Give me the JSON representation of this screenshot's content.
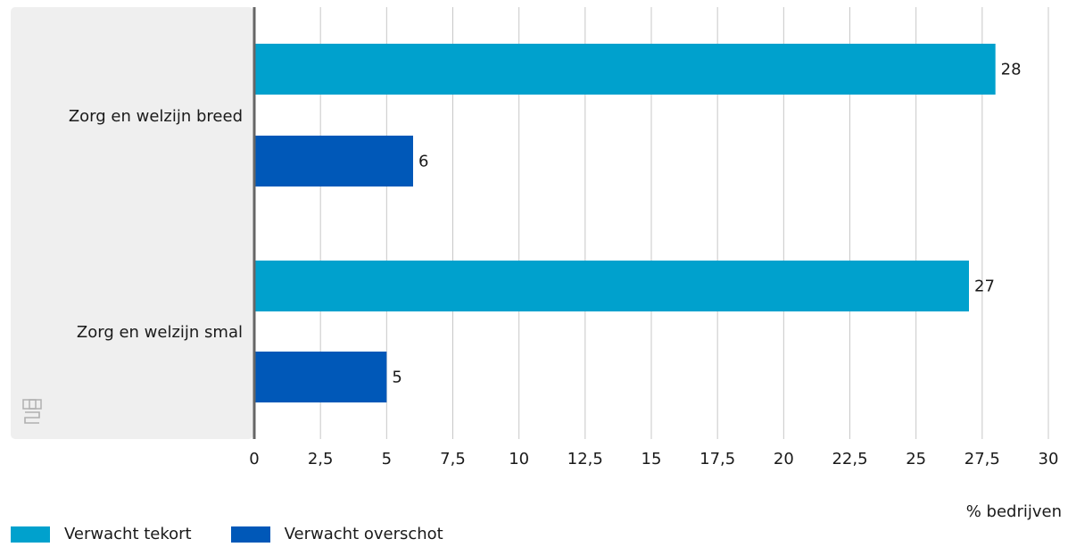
{
  "chart_data": {
    "type": "bar",
    "orientation": "horizontal",
    "categories": [
      "Zorg en welzijn breed",
      "Zorg en welzijn smal"
    ],
    "series": [
      {
        "name": "Verwacht tekort",
        "values": [
          28,
          27
        ],
        "color": "#00a1cd"
      },
      {
        "name": "Verwacht overschot",
        "values": [
          6,
          5
        ],
        "color": "#0058b8"
      }
    ],
    "data_labels": [
      [
        "28",
        "27"
      ],
      [
        "6",
        "5"
      ]
    ],
    "xlabel": "% bedrijven",
    "ylabel": "",
    "xlim": [
      0,
      30
    ],
    "xticks": [
      0,
      2.5,
      5,
      7.5,
      10,
      12.5,
      15,
      17.5,
      20,
      22.5,
      25,
      27.5,
      30
    ],
    "xtick_labels": [
      "0",
      "2,5",
      "5",
      "7,5",
      "10",
      "12,5",
      "15",
      "17,5",
      "20",
      "22,5",
      "25",
      "27,5",
      "30"
    ],
    "grid": true,
    "legend_position": "bottom-left"
  },
  "logo": {
    "icon": "cbs-logo-icon",
    "text": "cbs"
  },
  "colors": {
    "tekort": "#00a1cd",
    "overschot": "#0058b8",
    "label_panel": "#efefef",
    "grid": "#c8c8c8",
    "axis": "#666666"
  }
}
